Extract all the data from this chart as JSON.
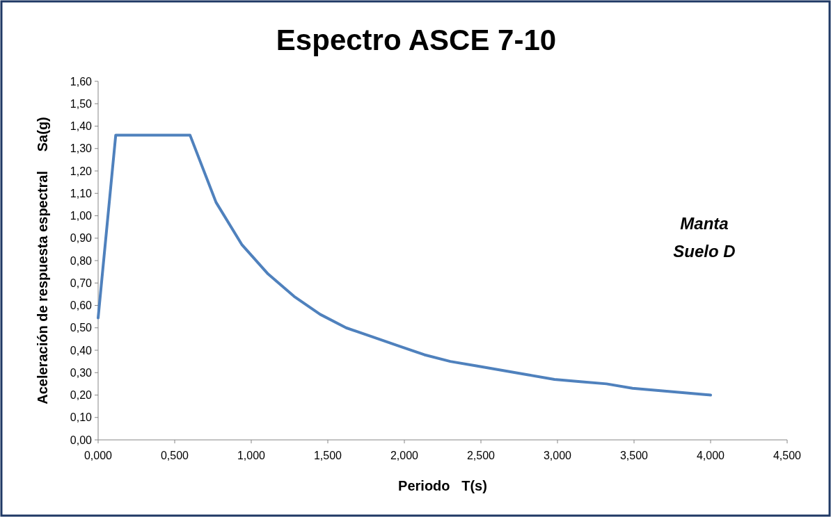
{
  "chart_data": {
    "type": "line",
    "title": "Espectro ASCE 7-10",
    "xlabel": "Periodo   T(s)",
    "ylabel": "Aceleración de respuesta espectral     Sa(g)",
    "annotations": [
      "Manta\nSuelo D"
    ],
    "series": [
      {
        "color": "#4f81bd",
        "x": [
          0,
          0.115,
          0.6,
          0.77,
          0.94,
          1.11,
          1.28,
          1.45,
          1.62,
          1.79,
          1.96,
          2.13,
          2.3,
          2.47,
          2.64,
          2.81,
          2.98,
          3.15,
          3.32,
          3.49,
          3.66,
          3.83,
          4.0
        ],
        "values": [
          0.544,
          1.36,
          1.36,
          1.06,
          0.87,
          0.74,
          0.64,
          0.56,
          0.5,
          0.46,
          0.42,
          0.38,
          0.35,
          0.33,
          0.31,
          0.29,
          0.27,
          0.26,
          0.25,
          0.23,
          0.22,
          0.21,
          0.2
        ]
      }
    ],
    "xlim": [
      0,
      4.5
    ],
    "xticks": [
      {
        "value": 0,
        "label": "0,000"
      },
      {
        "value": 0.5,
        "label": "0,500"
      },
      {
        "value": 1,
        "label": "1,000"
      },
      {
        "value": 1.5,
        "label": "1,500"
      },
      {
        "value": 2,
        "label": "2,000"
      },
      {
        "value": 2.5,
        "label": "2,500"
      },
      {
        "value": 3,
        "label": "3,000"
      },
      {
        "value": 3.5,
        "label": "3,500"
      },
      {
        "value": 4,
        "label": "4,000"
      },
      {
        "value": 4.5,
        "label": "4,500"
      }
    ],
    "ylim": [
      0,
      1.6
    ],
    "yticks": [
      {
        "value": 0,
        "label": "0,00"
      },
      {
        "value": 0.1,
        "label": "0,10"
      },
      {
        "value": 0.2,
        "label": "0,20"
      },
      {
        "value": 0.3,
        "label": "0,30"
      },
      {
        "value": 0.4,
        "label": "0,40"
      },
      {
        "value": 0.5,
        "label": "0,50"
      },
      {
        "value": 0.6,
        "label": "0,60"
      },
      {
        "value": 0.7,
        "label": "0,70"
      },
      {
        "value": 0.8,
        "label": "0,80"
      },
      {
        "value": 0.9,
        "label": "0,90"
      },
      {
        "value": 1,
        "label": "1,00"
      },
      {
        "value": 1.1,
        "label": "1,10"
      },
      {
        "value": 1.2,
        "label": "1,20"
      },
      {
        "value": 1.3,
        "label": "1,30"
      },
      {
        "value": 1.4,
        "label": "1,40"
      },
      {
        "value": 1.5,
        "label": "1,50"
      },
      {
        "value": 1.6,
        "label": "1,60"
      }
    ],
    "grid": false,
    "marker": "none",
    "line_style": "solid"
  }
}
